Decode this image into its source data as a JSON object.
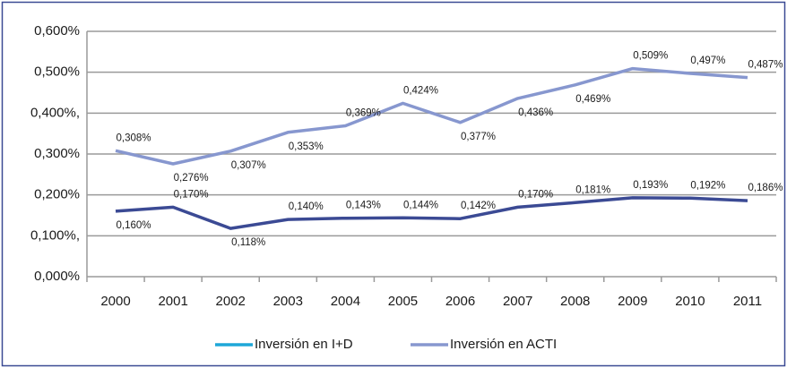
{
  "chart_data": {
    "type": "line",
    "categories": [
      "2000",
      "2001",
      "2002",
      "2003",
      "2004",
      "2005",
      "2006",
      "2007",
      "2008",
      "2009",
      "2010",
      "2011"
    ],
    "series": [
      {
        "name": "Inversión en I+D",
        "color": "#3b4a94",
        "legend_color": "#1ea7d8",
        "values": [
          0.16,
          0.17,
          0.118,
          0.14,
          0.143,
          0.144,
          0.142,
          0.17,
          0.181,
          0.193,
          0.192,
          0.186
        ],
        "value_labels": [
          "0,160%",
          "0,170%",
          "0,118%",
          "0,140%",
          "0,143%",
          "0,144%",
          "0,142%",
          "0,170%",
          "0,181%",
          "0,193%",
          "0,192%",
          "0,186%"
        ]
      },
      {
        "name": "Inversión en ACTI",
        "color": "#8797cf",
        "legend_color": "#8797cf",
        "values": [
          0.308,
          0.276,
          0.307,
          0.353,
          0.369,
          0.424,
          0.377,
          0.436,
          0.469,
          0.509,
          0.497,
          0.487
        ],
        "value_labels": [
          "0,308%",
          "0,276%",
          "0,307%",
          "0,353%",
          "0,369%",
          "0,424%",
          "0,377%",
          "0,436%",
          "0,469%",
          "0,509%",
          "0,497%",
          "0,487%"
        ]
      }
    ],
    "ylim": [
      0,
      0.6
    ],
    "yticks": [
      {
        "value": 0,
        "label": "0,000%"
      },
      {
        "value": 0.1,
        "label": "0,100%,"
      },
      {
        "value": 0.2,
        "label": "0,200%"
      },
      {
        "value": 0.3,
        "label": "0,300%"
      },
      {
        "value": 0.4,
        "label": "0,400%,"
      },
      {
        "value": 0.5,
        "label": "0,500%"
      },
      {
        "value": 0.6,
        "label": "0,600%"
      }
    ],
    "grid": true
  }
}
